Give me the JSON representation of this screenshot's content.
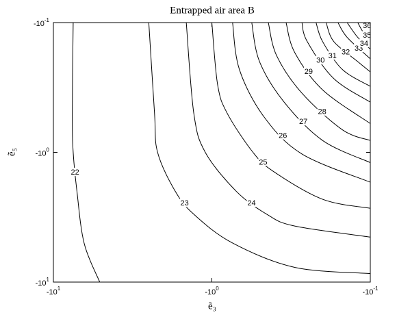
{
  "chart_data": {
    "type": "contour",
    "title": "Entrapped air area B",
    "xlabel": "ẽ₃",
    "ylabel": "ẽ₅",
    "xscale": "log",
    "yscale": "log",
    "color": "#000000",
    "xlim": [
      -10,
      -0.1
    ],
    "ylim": [
      -10,
      -0.1
    ],
    "xticks": [
      {
        "value": -10,
        "label": "-10",
        "exponent": "1"
      },
      {
        "value": -1,
        "label": "-10",
        "exponent": "0"
      },
      {
        "value": -0.1,
        "label": "-10",
        "exponent": "-1"
      }
    ],
    "yticks": [
      {
        "value": -10,
        "label": "-10",
        "exponent": "1"
      },
      {
        "value": -1,
        "label": "-10",
        "exponent": "0"
      },
      {
        "value": -0.1,
        "label": "-10",
        "exponent": "-1"
      }
    ],
    "contours": [
      {
        "level": 22,
        "x": [
          -7.5,
          -7.6,
          -7.5,
          -7.1,
          -6.4,
          -5.1
        ],
        "y": [
          -0.1,
          -0.5,
          -1,
          -2,
          -5,
          -10
        ]
      },
      {
        "level": 23,
        "x": [
          -2.5,
          -2.3,
          -2.2,
          -1.7,
          -1.3,
          -0.74,
          -0.3,
          -0.1
        ],
        "y": [
          -0.1,
          -0.5,
          -1,
          -2,
          -3,
          -5,
          -7.7,
          -8.6
        ]
      },
      {
        "level": 24,
        "x": [
          -1.45,
          -1.3,
          -1.1,
          -0.7,
          -0.45,
          -0.3,
          -0.1
        ],
        "y": [
          -0.1,
          -0.5,
          -1,
          -2,
          -3,
          -3.7,
          -4.5
        ]
      },
      {
        "level": 25,
        "x": [
          -1.0,
          -0.92,
          -0.8,
          -0.55,
          -0.41,
          -0.2,
          -0.1
        ],
        "y": [
          -0.1,
          -0.3,
          -0.5,
          -1,
          -1.4,
          -2.3,
          -2.7
        ]
      },
      {
        "level": 26,
        "x": [
          -0.74,
          -0.67,
          -0.47,
          -0.27,
          -0.1
        ],
        "y": [
          -0.1,
          -0.23,
          -0.53,
          -1.03,
          -1.7
        ]
      },
      {
        "level": 27,
        "x": [
          -0.56,
          -0.5,
          -0.35,
          -0.2,
          -0.1
        ],
        "y": [
          -0.1,
          -0.2,
          -0.41,
          -0.81,
          -1.2
        ]
      },
      {
        "level": 28,
        "x": [
          -0.44,
          -0.39,
          -0.27,
          -0.15,
          -0.1
        ],
        "y": [
          -0.1,
          -0.18,
          -0.35,
          -0.67,
          -0.81
        ]
      },
      {
        "level": 29,
        "x": [
          -0.34,
          -0.3,
          -0.2,
          -0.1
        ],
        "y": [
          -0.1,
          -0.17,
          -0.33,
          -0.6
        ]
      },
      {
        "level": 30,
        "x": [
          -0.27,
          -0.25,
          -0.17,
          -0.1
        ],
        "y": [
          -0.1,
          -0.14,
          -0.27,
          -0.41
        ]
      },
      {
        "level": 31,
        "x": [
          -0.22,
          -0.2,
          -0.15,
          -0.1
        ],
        "y": [
          -0.1,
          -0.14,
          -0.23,
          -0.31
        ]
      },
      {
        "level": 32,
        "x": [
          -0.19,
          -0.17,
          -0.12,
          -0.1
        ],
        "y": [
          -0.1,
          -0.14,
          -0.2,
          -0.24
        ]
      },
      {
        "level": 33,
        "x": [
          -0.16,
          -0.14,
          -0.1
        ],
        "y": [
          -0.1,
          -0.13,
          -0.19
        ]
      },
      {
        "level": 34,
        "x": [
          -0.14,
          -0.12,
          -0.1
        ],
        "y": [
          -0.1,
          -0.13,
          -0.16
        ]
      },
      {
        "level": 35,
        "x": [
          -0.12,
          -0.11,
          -0.1
        ],
        "y": [
          -0.1,
          -0.12,
          -0.13
        ]
      },
      {
        "level": 36,
        "x": [
          -0.11,
          -0.1
        ],
        "y": [
          -0.1,
          -0.11
        ]
      }
    ]
  }
}
